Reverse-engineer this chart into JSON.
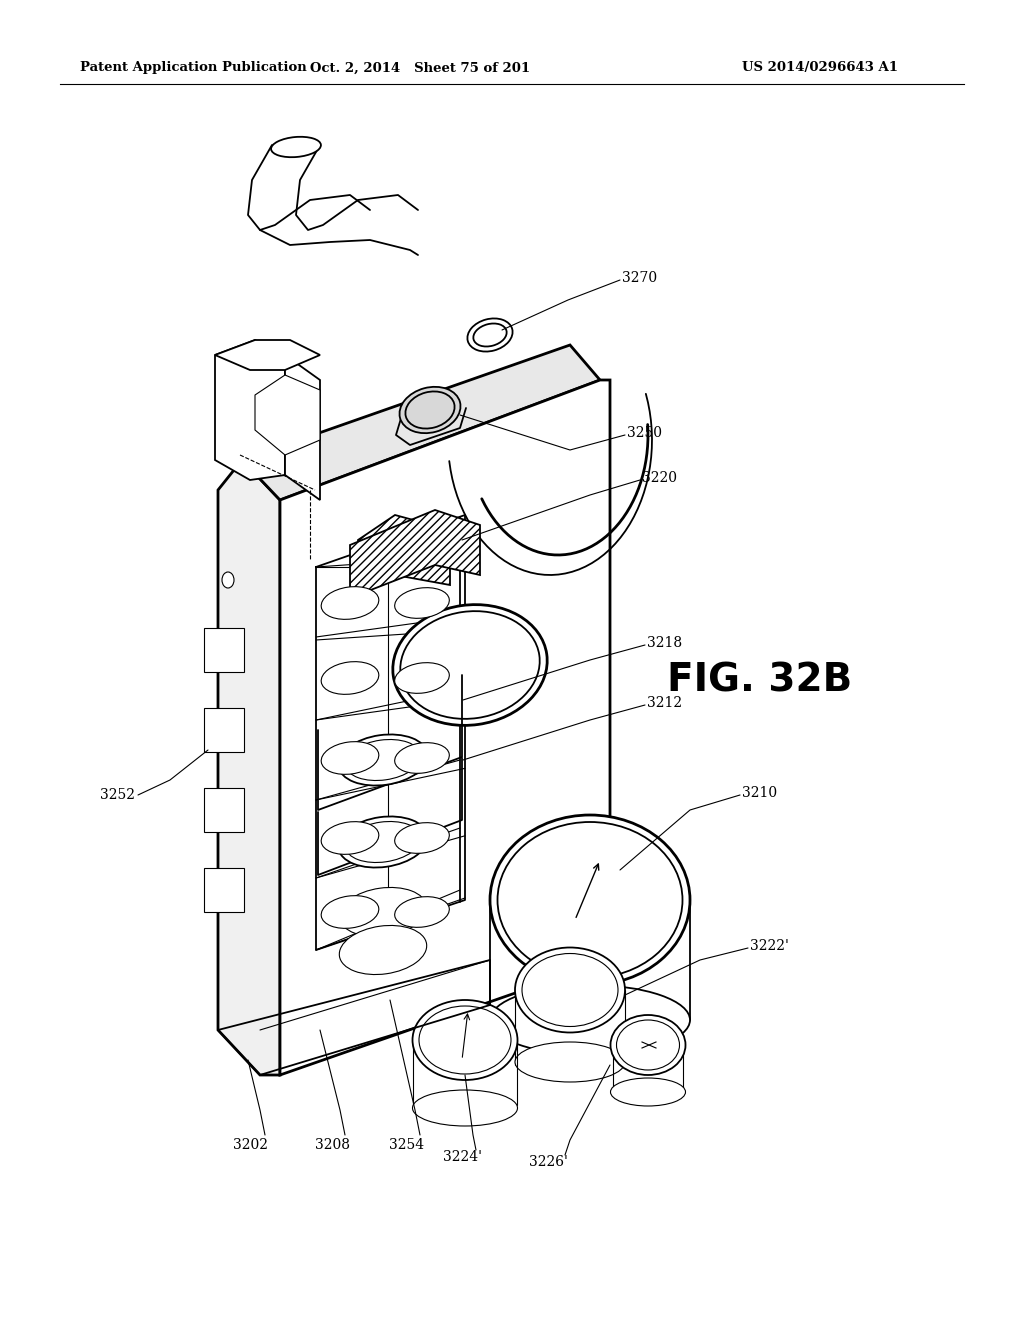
{
  "header_left": "Patent Application Publication",
  "header_center": "Oct. 2, 2014   Sheet 75 of 201",
  "header_right": "US 2014/0296643 A1",
  "fig_label": "FIG. 32B",
  "background_color": "#ffffff"
}
